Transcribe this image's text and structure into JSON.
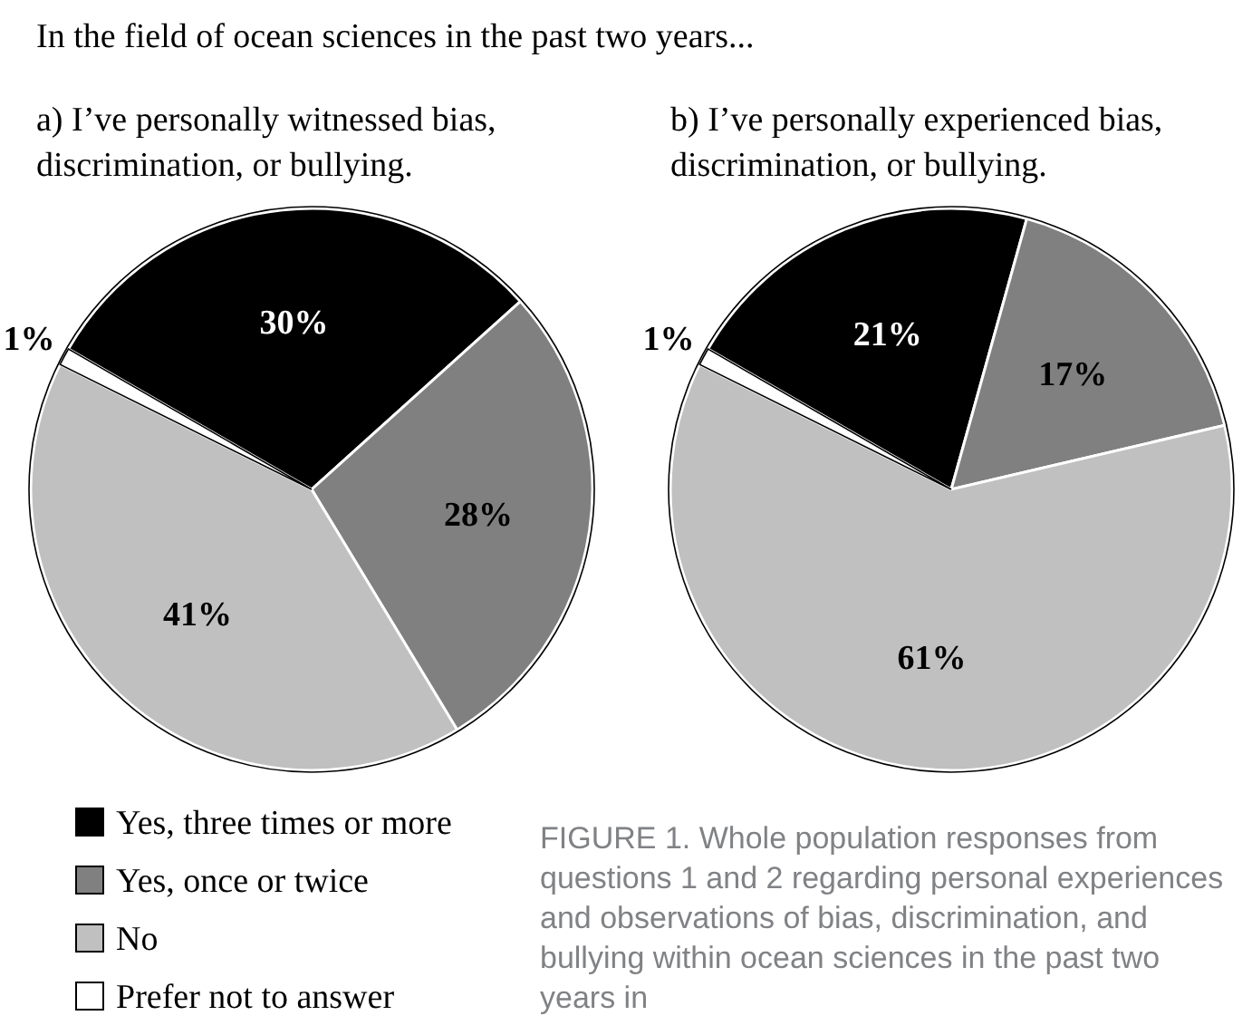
{
  "chart_data": [
    {
      "type": "pie",
      "title": "a) I’ve personally witnessed bias, discrimination, or bullying.",
      "annotations": [
        "In the field of ocean sciences in the past two years..."
      ],
      "categories": [
        "Yes, three times or more",
        "Yes, once or twice",
        "No",
        "Prefer not to answer"
      ],
      "values": [
        30,
        28,
        41,
        1
      ],
      "value_labels": [
        "30%",
        "28%",
        "41%",
        "1%"
      ],
      "colors": [
        "#000000",
        "#808080",
        "#c0c0c0",
        "#ffffff"
      ],
      "legend": "bottom left"
    },
    {
      "type": "pie",
      "title": "b) I’ve personally experienced bias, discrimination, or bullying.",
      "annotations": [
        "FIGURE 1. Whole population responses from questions 1 and 2 regarding personal experiences and observations of bias, discrimination, and bullying within ocean sciences in the past two years in"
      ],
      "categories": [
        null,
        null,
        null,
        null
      ],
      "values": [
        21,
        17,
        61,
        1
      ],
      "value_labels": [
        "21%",
        "17%",
        "61%",
        "1%"
      ],
      "colors": [
        "#000000",
        "#808080",
        "#c0c0c0",
        "#ffffff"
      ]
    }
  ]
}
